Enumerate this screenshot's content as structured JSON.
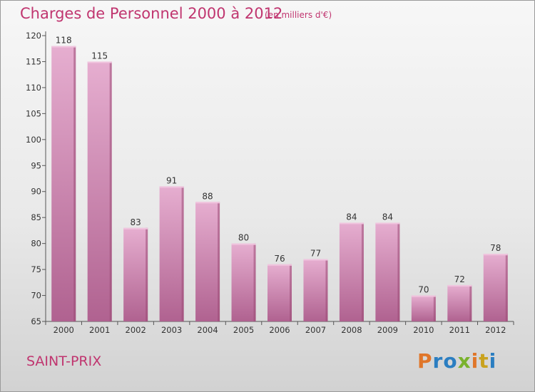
{
  "title": "Charges de Personnel 2000 à 2012",
  "unit": "(en milliers d'€)",
  "place": "SAINT-PRIX",
  "logo": {
    "letters": [
      "P",
      "r",
      "o",
      "x",
      "i",
      "t",
      "i"
    ],
    "colors": [
      "#e0762a",
      "#2b7ec1",
      "#2b7ec1",
      "#7ab22c",
      "#e0762a",
      "#c9a21e",
      "#2b7ec1"
    ]
  },
  "colors": {
    "bar_light": "#e3a7cc",
    "bar_dark": "#a8547f",
    "bar_side": "#9b4a74",
    "text_accent": "#c0356f"
  },
  "chart_data": {
    "type": "bar",
    "title": "Charges de Personnel 2000 à 2012",
    "subtitle": "(en milliers d'€)",
    "categories": [
      "2000",
      "2001",
      "2002",
      "2003",
      "2004",
      "2005",
      "2006",
      "2007",
      "2008",
      "2009",
      "2010",
      "2011",
      "2012"
    ],
    "values": [
      118,
      115,
      83,
      91,
      88,
      80,
      76,
      77,
      84,
      84,
      70,
      72,
      78
    ],
    "ylim": [
      65,
      120
    ],
    "yticks": [
      65,
      70,
      75,
      80,
      85,
      90,
      95,
      100,
      105,
      110,
      115,
      120
    ],
    "grid": false,
    "legend": "none"
  }
}
